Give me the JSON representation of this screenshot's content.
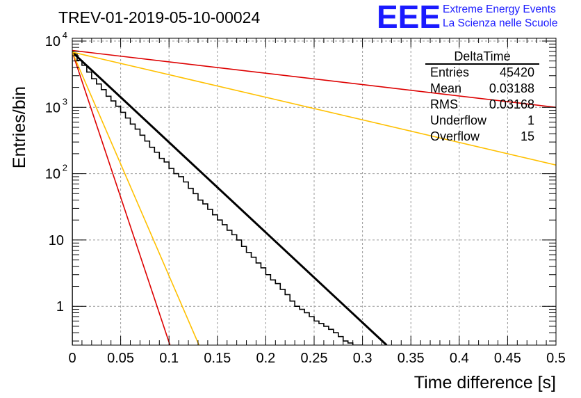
{
  "chart_data": {
    "type": "line",
    "title": "TREV-01-2019-05-10-00024",
    "xlabel": "Time difference [s]",
    "ylabel": "Entries/bin",
    "xlim": [
      0,
      0.5
    ],
    "ylim": [
      0.26,
      11000
    ],
    "yscale": "log",
    "grid": true,
    "x_ticks": [
      "0",
      "0.05",
      "0.1",
      "0.15",
      "0.2",
      "0.25",
      "0.3",
      "0.35",
      "0.4",
      "0.45",
      "0.5"
    ],
    "x_tick_values": [
      0,
      0.05,
      0.1,
      0.15,
      0.2,
      0.25,
      0.3,
      0.35,
      0.4,
      0.45,
      0.5
    ],
    "y_ticks": [
      {
        "value": 1,
        "base": "1",
        "exp": ""
      },
      {
        "value": 10,
        "base": "10",
        "exp": ""
      },
      {
        "value": 100,
        "base": "10",
        "exp": "2"
      },
      {
        "value": 1000,
        "base": "10",
        "exp": "3"
      },
      {
        "value": 10000,
        "base": "10",
        "exp": "4"
      }
    ],
    "histogram": {
      "name": "DeltaTime",
      "bin_width": 0.005,
      "color": "#000000",
      "values": [
        6500,
        5100,
        4300,
        3400,
        2700,
        2250,
        1850,
        1470,
        1250,
        1040,
        840,
        690,
        560,
        470,
        380,
        310,
        250,
        210,
        170,
        150,
        120,
        100,
        90,
        75,
        60,
        50,
        40,
        35,
        29,
        24,
        20,
        17,
        14,
        12,
        10,
        8,
        6.5,
        5.5,
        4.5,
        3.8,
        3,
        2.5,
        2.2,
        1.8,
        1.5,
        1.2,
        1,
        0.9,
        0.8,
        0.7,
        0.6,
        0.55,
        0.5,
        0.45,
        0.4,
        0.35,
        0.3,
        0.28,
        0.26,
        0.26
      ]
    },
    "curves": [
      {
        "color": "#000000",
        "width": 3,
        "x": [
          0,
          0.325
        ],
        "y": [
          6800,
          0.26
        ]
      },
      {
        "color": "#dd0000",
        "width": 1.6,
        "x": [
          0,
          0.101
        ],
        "y": [
          6800,
          0.26
        ]
      },
      {
        "color": "#ffc000",
        "width": 1.6,
        "x": [
          0,
          0.131
        ],
        "y": [
          6800,
          0.26
        ]
      },
      {
        "color": "#dd0000",
        "width": 1.6,
        "x": [
          0,
          0.5
        ],
        "y": [
          7200,
          1000
        ]
      },
      {
        "color": "#ffc000",
        "width": 1.6,
        "x": [
          0,
          0.5
        ],
        "y": [
          6800,
          135
        ]
      }
    ],
    "stats": {
      "title": "DeltaTime",
      "rows": [
        {
          "label": "Entries",
          "value": "45420"
        },
        {
          "label": "Mean",
          "value": "0.03188"
        },
        {
          "label": "RMS",
          "value": "0.03168"
        },
        {
          "label": "Underflow",
          "value": "1"
        },
        {
          "label": "Overflow",
          "value": "15"
        }
      ]
    }
  },
  "logo": {
    "mark": "EEE",
    "line1": "Extreme Energy Events",
    "line2": "La Scienza nelle Scuole",
    "color": "#1a1aff"
  }
}
